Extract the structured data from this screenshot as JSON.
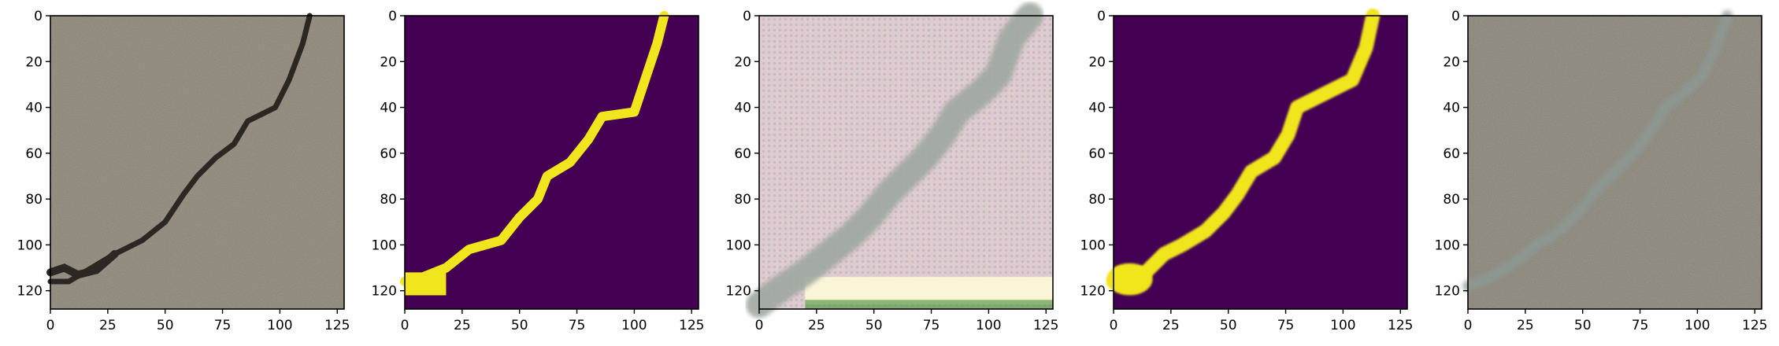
{
  "figure": {
    "panel_count": 5
  },
  "chart_data": [
    {
      "type": "image",
      "content": "concrete crack photograph (input)",
      "xlim": [
        0,
        128
      ],
      "ylim": [
        128,
        0
      ],
      "xticks": [
        0,
        25,
        50,
        75,
        100,
        125
      ],
      "yticks": [
        0,
        20,
        40,
        60,
        80,
        100,
        120
      ],
      "crack_path": [
        [
          113,
          0
        ],
        [
          110,
          12
        ],
        [
          104,
          28
        ],
        [
          98,
          40
        ],
        [
          86,
          46
        ],
        [
          80,
          56
        ],
        [
          72,
          62
        ],
        [
          64,
          70
        ],
        [
          58,
          78
        ],
        [
          50,
          90
        ],
        [
          40,
          98
        ],
        [
          28,
          104
        ],
        [
          18,
          110
        ],
        [
          8,
          116
        ],
        [
          0,
          116
        ]
      ],
      "colors": {
        "background": "#9d978a",
        "crack": "#2c2722"
      }
    },
    {
      "type": "image",
      "content": "binary crack mask (ground truth)",
      "xlim": [
        0,
        128
      ],
      "ylim": [
        128,
        0
      ],
      "xticks": [
        0,
        25,
        50,
        75,
        100,
        125
      ],
      "yticks": [
        0,
        20,
        40,
        60,
        80,
        100,
        120
      ],
      "crack_path": [
        [
          113,
          0
        ],
        [
          110,
          12
        ],
        [
          104,
          30
        ],
        [
          100,
          42
        ],
        [
          86,
          44
        ],
        [
          80,
          54
        ],
        [
          72,
          64
        ],
        [
          62,
          70
        ],
        [
          58,
          80
        ],
        [
          50,
          88
        ],
        [
          42,
          98
        ],
        [
          28,
          102
        ],
        [
          18,
          110
        ],
        [
          8,
          114
        ],
        [
          0,
          116
        ]
      ],
      "colors": {
        "background": "#440154",
        "crack": "#f1e51d"
      }
    },
    {
      "type": "image",
      "content": "noisy generated texture with diagonal crack",
      "xlim": [
        0,
        128
      ],
      "ylim": [
        128,
        0
      ],
      "xticks": [
        0,
        25,
        50,
        75,
        100,
        125
      ],
      "yticks": [
        0,
        20,
        40,
        60,
        80,
        100,
        120
      ],
      "crack_path": [
        [
          118,
          0
        ],
        [
          110,
          10
        ],
        [
          104,
          26
        ],
        [
          96,
          34
        ],
        [
          86,
          42
        ],
        [
          80,
          52
        ],
        [
          72,
          62
        ],
        [
          64,
          70
        ],
        [
          56,
          78
        ],
        [
          48,
          88
        ],
        [
          40,
          96
        ],
        [
          30,
          104
        ],
        [
          20,
          112
        ],
        [
          8,
          120
        ],
        [
          0,
          126
        ]
      ],
      "colors": {
        "background": "#d9c6cc",
        "crack": "#9fa8a0",
        "bottom_band": "#fbf5d8"
      }
    },
    {
      "type": "image",
      "content": "smooth synthetic crack mask",
      "xlim": [
        0,
        128
      ],
      "ylim": [
        128,
        0
      ],
      "xticks": [
        0,
        25,
        50,
        75,
        100,
        125
      ],
      "yticks": [
        0,
        20,
        40,
        60,
        80,
        100,
        120
      ],
      "crack_path": [
        [
          113,
          0
        ],
        [
          110,
          14
        ],
        [
          104,
          28
        ],
        [
          92,
          34
        ],
        [
          80,
          40
        ],
        [
          76,
          52
        ],
        [
          70,
          62
        ],
        [
          60,
          68
        ],
        [
          54,
          78
        ],
        [
          48,
          86
        ],
        [
          40,
          94
        ],
        [
          30,
          100
        ],
        [
          22,
          104
        ],
        [
          14,
          112
        ],
        [
          0,
          116
        ]
      ],
      "colors": {
        "background": "#440154",
        "crack": "#f1e51d"
      }
    },
    {
      "type": "image",
      "content": "synthesized concrete crack image",
      "xlim": [
        0,
        128
      ],
      "ylim": [
        128,
        0
      ],
      "xticks": [
        0,
        25,
        50,
        75,
        100,
        125
      ],
      "yticks": [
        0,
        20,
        40,
        60,
        80,
        100,
        120
      ],
      "crack_path": [
        [
          113,
          0
        ],
        [
          108,
          14
        ],
        [
          102,
          26
        ],
        [
          96,
          32
        ],
        [
          86,
          40
        ],
        [
          80,
          50
        ],
        [
          74,
          58
        ],
        [
          64,
          68
        ],
        [
          56,
          76
        ],
        [
          48,
          86
        ],
        [
          40,
          94
        ],
        [
          30,
          100
        ],
        [
          20,
          108
        ],
        [
          10,
          114
        ],
        [
          0,
          118
        ]
      ],
      "colors": {
        "background": "#9a968b",
        "crack": "#8c9a94"
      }
    }
  ]
}
